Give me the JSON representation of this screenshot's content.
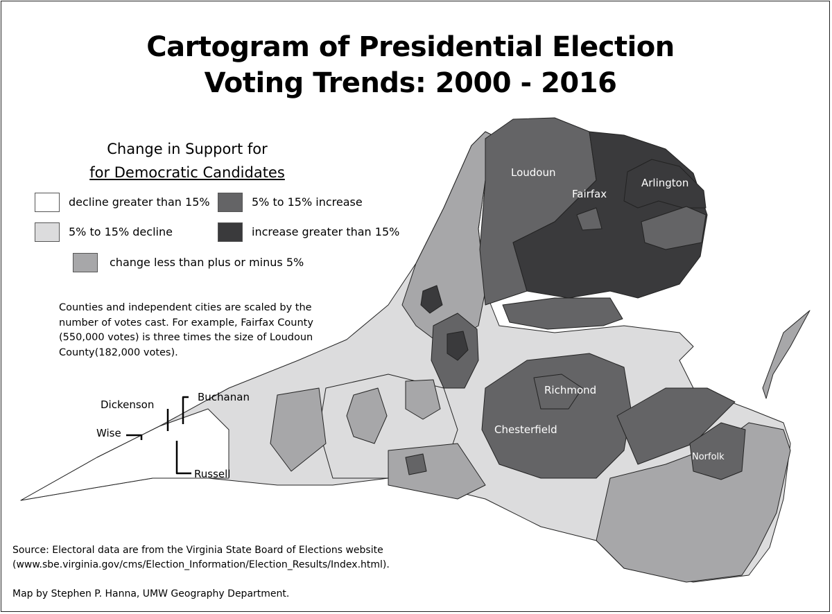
{
  "title_line1": "Cartogram of Presidential Election",
  "title_line2": "Voting Trends: 2000 - 2016",
  "legend": {
    "title_line1": "Change in Support for",
    "title_line2": "for Democratic Candidates",
    "items": [
      {
        "label": "decline greater than 15%",
        "color": "#ffffff"
      },
      {
        "label": "5% to 15% decline",
        "color": "#dcdcdd"
      },
      {
        "label": "change less than plus or minus 5%",
        "color": "#a7a7a9"
      },
      {
        "label": "5% to 15% increase",
        "color": "#646466"
      },
      {
        "label": "increase greater than 15%",
        "color": "#3a3a3c"
      }
    ]
  },
  "note": "Counties and independent cities are scaled by the number of votes cast. For example, Fairfax County (550,000 votes) is three times the size of Loudoun County(182,000 votes).",
  "labels": {
    "loudoun": "Loudoun",
    "fairfax": "Fairfax",
    "arlington": "Arlington",
    "richmond": "Richmond",
    "chesterfield": "Chesterfield",
    "norfolk": "Norfolk",
    "dickenson": "Dickenson",
    "buchanan": "Buchanan",
    "wise": "Wise",
    "russell": "Russell"
  },
  "source_line1": "Source:  Electoral data are from the Virginia State Board of Elections  website",
  "source_line2": "(www.sbe.virginia.gov/cms/Election_Information/Election_Results/Index.html).",
  "credit": "Map by Stephen P. Hanna, UMW Geography Department."
}
